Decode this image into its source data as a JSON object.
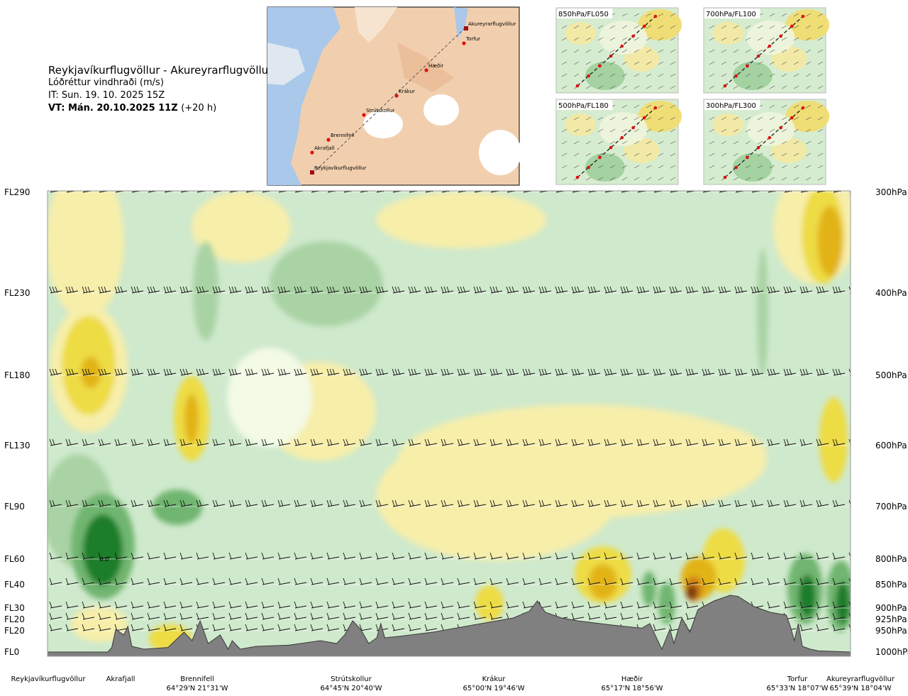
{
  "header": {
    "route": "Reykjavíkurflugvöllur - Akureyrarflugvöllur",
    "variable": "Lóðréttur vindhraði (m/s)",
    "issue_time": "IT: Sun. 19. 10. 2025 15Z",
    "valid_time": "VT: Mán. 20.10.2025 11Z",
    "lead": "(+20 h)"
  },
  "map": {
    "stations": [
      {
        "name": "Akureyrarflugvöllur"
      },
      {
        "name": "Torfur"
      },
      {
        "name": "Hæðir"
      },
      {
        "name": "Krákur"
      },
      {
        "name": "Strútskollur"
      },
      {
        "name": "Brennifell"
      },
      {
        "name": "Akrafjall"
      },
      {
        "name": "Reykjavíkurflugvöllur"
      }
    ]
  },
  "thumbnails": [
    {
      "label": "850hPa/FL050"
    },
    {
      "label": "700hPa/FL100"
    },
    {
      "label": "500hPa/FL180"
    },
    {
      "label": "300hPa/FL300"
    }
  ],
  "chart_data": {
    "type": "heatmap",
    "title": "Lóðréttur vindhraði (m/s)",
    "levels": [
      {
        "fl": "FL290",
        "hpa": "300hPa"
      },
      {
        "fl": "FL230",
        "hpa": "400hPa"
      },
      {
        "fl": "FL180",
        "hpa": "500hPa"
      },
      {
        "fl": "FL130",
        "hpa": "600hPa"
      },
      {
        "fl": "FL90",
        "hpa": "700hPa"
      },
      {
        "fl": "FL60",
        "hpa": "800hPa"
      },
      {
        "fl": "FL40",
        "hpa": "850hPa"
      },
      {
        "fl": "FL30",
        "hpa": "900hPa"
      },
      {
        "fl": "FL20",
        "hpa": "925hPa"
      },
      {
        "fl": "FL20",
        "hpa": "950hPa"
      },
      {
        "fl": "FL0",
        "hpa": "1000hPa"
      }
    ],
    "stations": [
      {
        "name": "Reykjavíkurflugvöllur",
        "coord": "",
        "dist": 0
      },
      {
        "name": "Akrafjall",
        "coord": "",
        "dist": 0.083
      },
      {
        "name": "Brennifell",
        "coord": "64°29'N 21°31'W",
        "dist": 0.19
      },
      {
        "name": "Strútskollur",
        "coord": "64°45'N 20°40'W",
        "dist": 0.375
      },
      {
        "name": "Krákur",
        "coord": "65°00'N 19°46'W",
        "dist": 0.552
      },
      {
        "name": "Hæðir",
        "coord": "65°17'N 18°56'W",
        "dist": 0.73
      },
      {
        "name": "Torfur",
        "coord": "65°33'N 18°07'W",
        "dist": 0.94
      },
      {
        "name": "Akureyrarflugvöllur",
        "coord": "65°39'N 18°04'W",
        "dist": 1.0
      }
    ],
    "annotations": [
      "0.0"
    ],
    "colors": {
      "strong_sink": "#1e7e2a",
      "moderate_sink": "#6fb56f",
      "weak_sink": "#a9d3a4",
      "slight_sink": "#cfe9cc",
      "neutral": "#f3fae6",
      "slight_rise": "#f7eeaa",
      "moderate_rise": "#eedc45",
      "strong_rise": "#e2b316",
      "very_strong_rise": "#cf7d12",
      "extreme_rise": "#7a3810",
      "terrain": "#808080"
    }
  }
}
